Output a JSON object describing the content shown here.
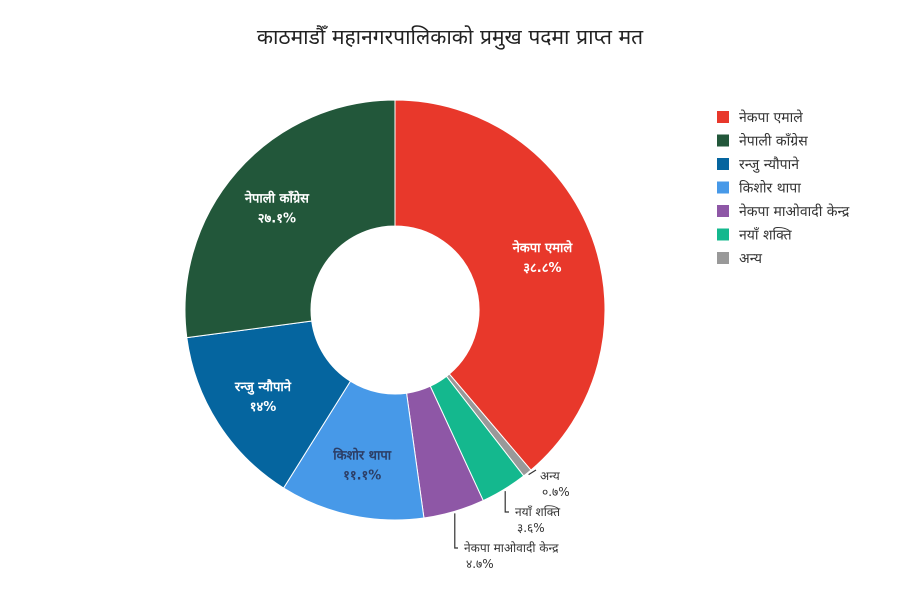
{
  "chart_data": {
    "type": "pie",
    "title": "काठमाडौँ महानगरपालिकाको प्रमुख पदमा प्राप्त मत",
    "legend_position": "top-right",
    "slices": [
      {
        "label": "नेकपा एमाले",
        "value": 38.8,
        "display": "३८.८%",
        "color": "#e8382b",
        "label_color": "#ffffff"
      },
      {
        "label": "अन्य",
        "value": 0.7,
        "display": "०.७%",
        "color": "#999999",
        "label_color": "#333333"
      },
      {
        "label": "नयाँ शक्ति",
        "value": 3.6,
        "display": "३.६%",
        "color": "#14b88e",
        "label_color": "#333333"
      },
      {
        "label": "नेकपा माओवादी केन्द्र",
        "value": 4.7,
        "display": "४.७%",
        "color": "#8e57a6",
        "label_color": "#333333"
      },
      {
        "label": "किशोर थापा",
        "value": 11.1,
        "display": "११.१%",
        "color": "#4799e8",
        "label_color": "#2c3e66"
      },
      {
        "label": "रन्जु न्यौपाने",
        "value": 14,
        "display": "१४%",
        "color": "#05659f",
        "label_color": "#ffffff"
      },
      {
        "label": "नेपाली काँग्रेस",
        "value": 27.1,
        "display": "२७.१%",
        "color": "#22573a",
        "label_color": "#ffffff"
      }
    ],
    "legend_order": [
      "नेकपा एमाले",
      "नेपाली काँग्रेस",
      "रन्जु न्यौपाने",
      "किशोर थापा",
      "नेकपा माओवादी केन्द्र",
      "नयाँ शक्ति",
      "अन्य"
    ]
  }
}
